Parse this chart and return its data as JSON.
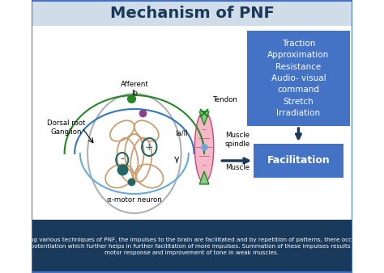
{
  "title": "Mechanism of PNF",
  "title_fontsize": 14,
  "title_color": "#1a3a5c",
  "title_bg": "#d0dce8",
  "bg_color": "#ffffff",
  "bottom_bg": "#1a3a5c",
  "bottom_text": "By using various techniques of PNF, the impulses to the brain are facilitated and by repetition of patterns, there occur long\nterm potentiation which further helps in further facilitation of more impulses. Summation of these impulses results in the\nmotor response and improvement of tone in weak muscles.",
  "bottom_text_color": "#ffffff",
  "box1_text": "Traction\nApproximation\nResistance\nAudio- visual\ncommand\nStretch\nIrradiation",
  "box1_color": "#4472c4",
  "box2_text": "Facilitation",
  "box2_color": "#4472c4",
  "arrow_color": "#1a3a5c",
  "border_color": "#4472c4",
  "spinal_outer_color": "#b0b0b0",
  "gray_matter_color": "#c8a070",
  "muscle_spindle_face": "#f5b8c8",
  "muscle_spindle_edge": "#cc4477",
  "tendon_face": "#88cc88",
  "tendon_edge": "#228822",
  "green_nerve": "#228822",
  "blue_nerve": "#3377bb",
  "light_blue_nerve": "#66aadd",
  "teal_neuron": "#226666",
  "purple_neuron": "#884488"
}
